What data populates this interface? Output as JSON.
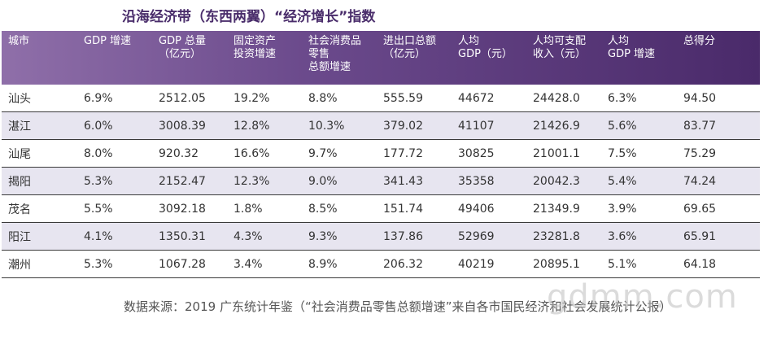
{
  "title": "沿海经济带（东西两翼）“经济增长”指数",
  "headers": [
    [
      "城市"
    ],
    [
      "GDP 增速"
    ],
    [
      "GDP 总量",
      "（亿元）"
    ],
    [
      "固定资产",
      "投资增速"
    ],
    [
      "社会消费品",
      "零售",
      "总额增速"
    ],
    [
      "进出口总额",
      "（亿元）"
    ],
    [
      "人均",
      "GDP（元）"
    ],
    [
      "人均可支配",
      "收入（元）"
    ],
    [
      "人均",
      "GDP 增速"
    ],
    [
      "总得分"
    ]
  ],
  "rows": [
    [
      "汕头",
      "6.9%",
      "2512.05",
      "19.2%",
      "8.8%",
      "555.59",
      "44672",
      "24428.0",
      "6.3%",
      "94.50"
    ],
    [
      "湛江",
      "6.0%",
      "3008.39",
      "12.8%",
      "10.3%",
      "379.02",
      "41107",
      "21426.9",
      "5.6%",
      "83.77"
    ],
    [
      "汕尾",
      "8.0%",
      "920.32",
      "16.6%",
      "9.7%",
      "177.72",
      "30825",
      "21001.1",
      "7.5%",
      "75.29"
    ],
    [
      "揭阳",
      "5.3%",
      "2152.47",
      "12.3%",
      "9.0%",
      "341.43",
      "35358",
      "20042.3",
      "5.4%",
      "74.24"
    ],
    [
      "茂名",
      "5.5%",
      "3092.18",
      "1.8%",
      "8.5%",
      "151.74",
      "49406",
      "21349.9",
      "3.9%",
      "69.65"
    ],
    [
      "阳江",
      "4.1%",
      "1350.31",
      "4.3%",
      "9.3%",
      "137.86",
      "52969",
      "23281.8",
      "3.6%",
      "65.91"
    ],
    [
      "潮州",
      "5.3%",
      "1067.28",
      "3.4%",
      "8.9%",
      "206.32",
      "40219",
      "20895.1",
      "5.1%",
      "64.18"
    ]
  ],
  "source": "数据来源：2019 广东统计年鉴（“社会消费品零售总额增速”来自各市国民经济和社会发展统计公报）",
  "watermark": "gdmm.com",
  "colors": {
    "header_start": "#8f6fa9",
    "header_end": "#4a2a6a",
    "stripe": "#e7e5f0",
    "title": "#4a2d6b"
  }
}
